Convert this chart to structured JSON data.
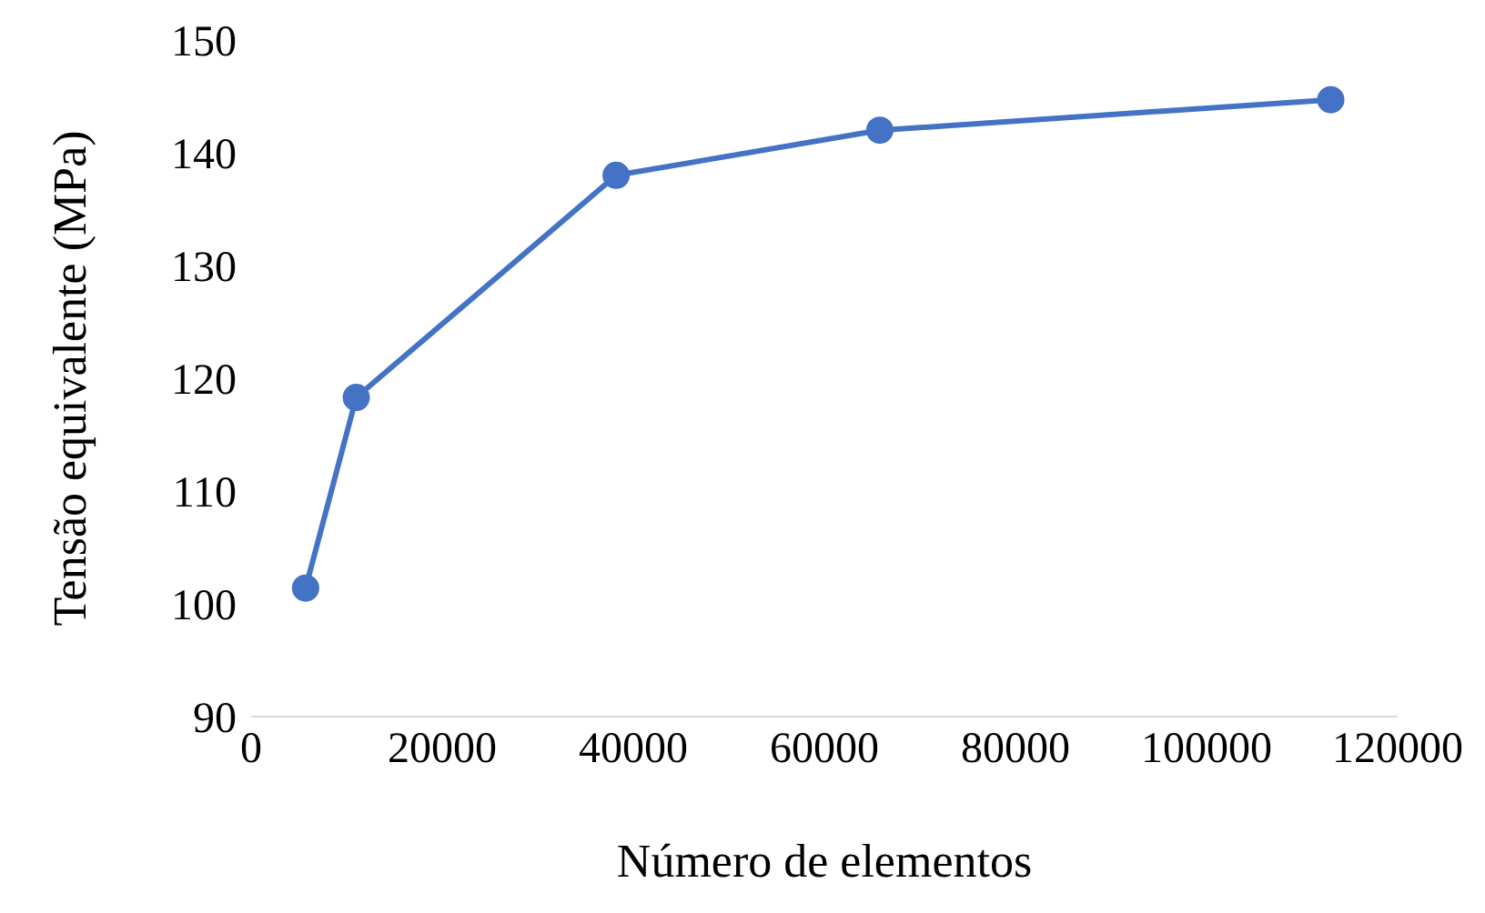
{
  "chart_data": {
    "type": "line",
    "xlabel": "Número de elementos",
    "ylabel": "Tensão equivalente (MPa)",
    "x": [
      5700,
      11000,
      38200,
      65800,
      113000
    ],
    "series": [
      {
        "color": "#4472c4",
        "values": [
          101.4,
          118.3,
          138.0,
          142.0,
          144.7
        ]
      }
    ],
    "xlim": [
      0,
      120000
    ],
    "xticks": [
      0,
      20000,
      40000,
      60000,
      80000,
      100000,
      120000
    ],
    "ylim": [
      90,
      150
    ],
    "yticks": [
      90,
      100,
      110,
      120,
      130,
      140,
      150
    ],
    "marker": "circle",
    "line_style": "solid"
  }
}
